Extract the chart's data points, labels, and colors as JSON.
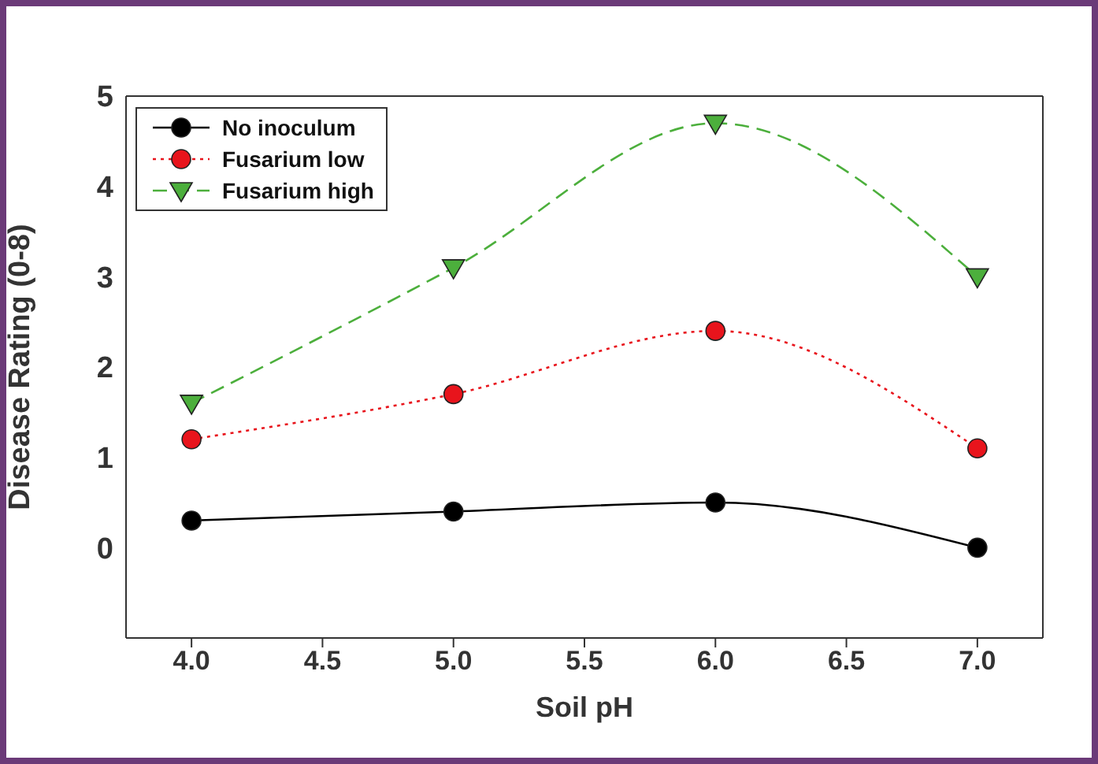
{
  "chart_data": {
    "type": "line",
    "xlabel": "Soil pH",
    "ylabel": "Disease Rating (0-8)",
    "x": [
      4.0,
      5.0,
      6.0,
      7.0
    ],
    "xlim": [
      3.75,
      7.25
    ],
    "xticks": [
      {
        "value": 4,
        "label": "4.0"
      },
      {
        "value": 4.5,
        "label": "4.5"
      },
      {
        "value": 5,
        "label": "5.0"
      },
      {
        "value": 5.5,
        "label": "5.5"
      },
      {
        "value": 6,
        "label": "6.0"
      },
      {
        "value": 6.5,
        "label": "6.5"
      },
      {
        "value": 7,
        "label": "7.0"
      }
    ],
    "ylim": [
      -1,
      5
    ],
    "yticks": [
      0,
      1,
      2,
      3,
      4,
      5
    ],
    "grid": false,
    "legend": "top left",
    "series": [
      {
        "name": "No inoculum",
        "color": "#000000",
        "marker": "circle",
        "line_style": "solid",
        "values": [
          0.3,
          0.4,
          0.5,
          0.0
        ]
      },
      {
        "name": "Fusarium low",
        "color": "#e8141c",
        "marker": "circle",
        "line_style": "dotted",
        "values": [
          1.2,
          1.7,
          2.4,
          1.1
        ]
      },
      {
        "name": "Fusarium high",
        "color": "#4caf3c",
        "marker": "triangle",
        "line_style": "dashed",
        "values": [
          1.6,
          3.1,
          4.7,
          3.0
        ]
      }
    ]
  }
}
